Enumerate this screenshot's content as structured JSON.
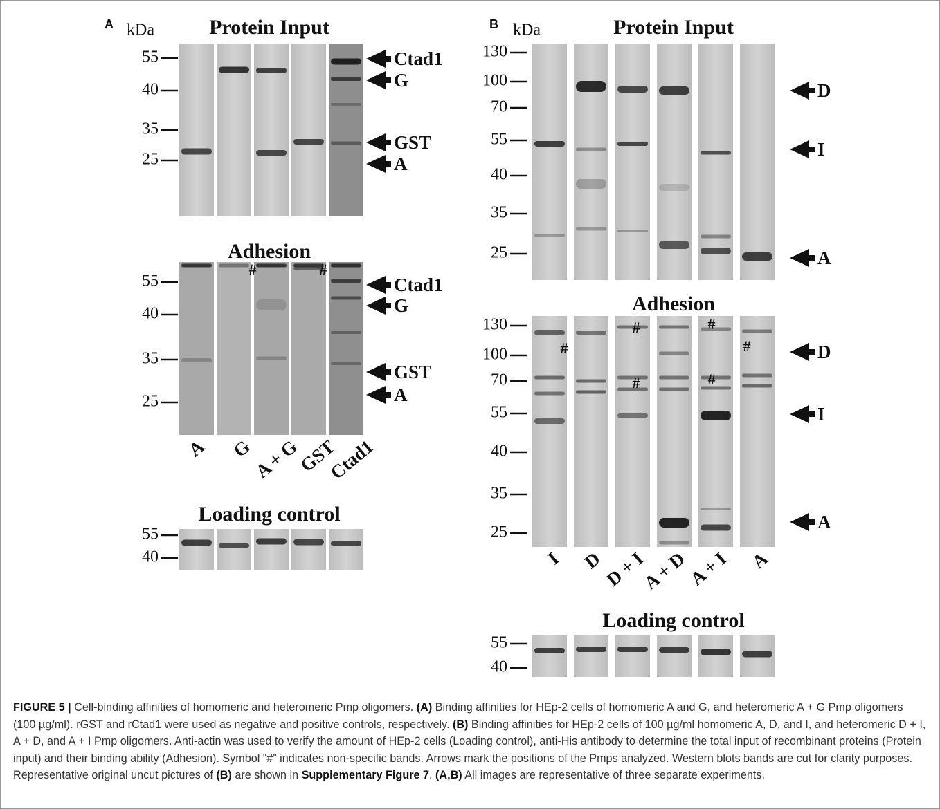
{
  "panel_a": {
    "letter": "A",
    "kda": "kDa",
    "input_title": "Protein Input",
    "input_markers": [
      "55",
      "40",
      "35",
      "25"
    ],
    "input_arrows": [
      "Ctad1",
      "G",
      "GST",
      "A"
    ],
    "adhesion_title": "Adhesion",
    "adhesion_markers": [
      "55",
      "40",
      "35",
      "25"
    ],
    "adhesion_arrows": [
      "Ctad1",
      "G",
      "GST",
      "A"
    ],
    "nonspecific": [
      "#",
      "#"
    ],
    "lanes": [
      "A",
      "G",
      "A + G",
      "GST",
      "Ctad1"
    ],
    "loading_title": "Loading control",
    "loading_markers": [
      "55",
      "40"
    ]
  },
  "panel_b": {
    "letter": "B",
    "kda": "kDa",
    "input_title": "Protein Input",
    "input_markers": [
      "130",
      "100",
      "70",
      "55",
      "40",
      "35",
      "25"
    ],
    "input_arrows": [
      "D",
      "I",
      "A"
    ],
    "adhesion_title": "Adhesion",
    "adhesion_markers": [
      "130",
      "100",
      "70",
      "55",
      "40",
      "35",
      "25"
    ],
    "adhesion_arrows": [
      "D",
      "I",
      "A"
    ],
    "nonspecific": [
      "#",
      "#",
      "#",
      "#",
      "#",
      "#"
    ],
    "lanes": [
      "I",
      "D",
      "D + I",
      "A + D",
      "A + I",
      "A"
    ],
    "loading_title": "Loading control",
    "loading_markers": [
      "55",
      "40"
    ]
  },
  "caption": [
    {
      "text": "FIGURE 5 |",
      "bold": true
    },
    {
      "text": " Cell-binding affinities of homomeric and heteromeric Pmp oligomers. ",
      "bold": false
    },
    {
      "text": "(A)",
      "bold": true
    },
    {
      "text": " Binding affinities for HEp-2 cells of homomeric A and G, and heteromeric A + G Pmp oligomers (100 µg/ml). rGST and rCtad1 were used as negative and positive controls, respectively. ",
      "bold": false
    },
    {
      "text": "(B)",
      "bold": true
    },
    {
      "text": " Binding affinities for HEp-2 cells of 100 µg/ml homomeric A, D, and I, and heteromeric D + I, A + D, and A + I Pmp oligomers. Anti-actin was used to verify the amount of HEp-2 cells (Loading control), anti-His antibody to determine the total input of recombinant proteins (Protein input) and their binding ability (Adhesion). Symbol “#” indicates non-specific bands. Arrows mark the positions of the Pmps analyzed. Western blots bands are cut for clarity purposes. Representative original uncut pictures of ",
      "bold": false
    },
    {
      "text": "(B)",
      "bold": true
    },
    {
      "text": " are shown in ",
      "bold": false
    },
    {
      "text": "Supplementary Figure 7",
      "bold": true
    },
    {
      "text": ". ",
      "bold": false
    },
    {
      "text": "(A,B)",
      "bold": true
    },
    {
      "text": " All images are representative of three separate experiments.",
      "bold": false
    }
  ]
}
